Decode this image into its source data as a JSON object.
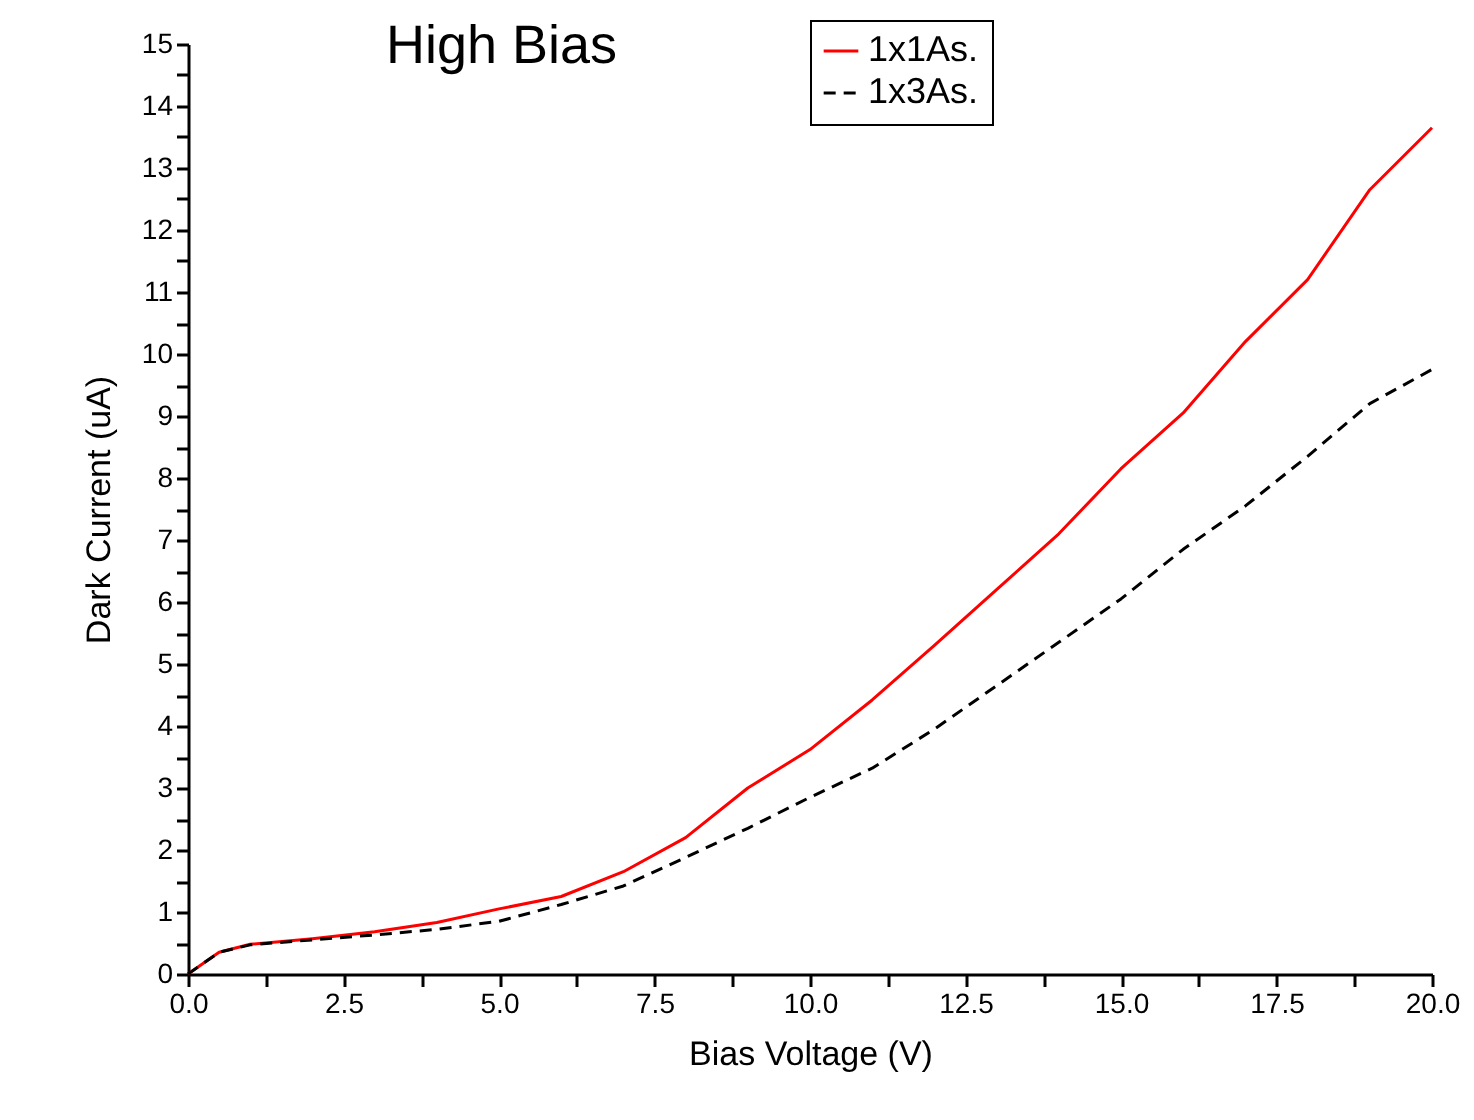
{
  "chart_data": {
    "type": "line",
    "title": "High Bias",
    "xlabel": "Bias Voltage (V)",
    "ylabel": "Dark Current (uA)",
    "x": [
      0,
      0.5,
      1,
      2,
      3,
      4,
      5,
      6,
      7,
      8,
      9,
      10,
      11,
      12,
      13,
      14,
      15,
      16,
      17,
      18,
      19,
      20
    ],
    "series": [
      {
        "name": "1x1As.",
        "color": "#ff0000",
        "line_style": "solid",
        "values": [
          0,
          0.35,
          0.48,
          0.57,
          0.68,
          0.83,
          1.05,
          1.25,
          1.65,
          2.2,
          3.0,
          3.62,
          4.42,
          5.3,
          6.2,
          7.1,
          8.15,
          9.05,
          10.2,
          11.2,
          12.65,
          13.65
        ]
      },
      {
        "name": "1x3As.",
        "color": "#000000",
        "line_style": "dashed",
        "values": [
          0,
          0.35,
          0.47,
          0.55,
          0.63,
          0.72,
          0.85,
          1.12,
          1.42,
          1.88,
          2.35,
          2.85,
          3.32,
          3.95,
          4.65,
          5.35,
          6.05,
          6.85,
          7.55,
          8.35,
          9.2,
          9.75
        ]
      }
    ],
    "xlim": [
      0,
      20
    ],
    "ylim": [
      0,
      15
    ],
    "xticks": [
      {
        "value": 0,
        "label": "0.0"
      },
      {
        "value": 1.25,
        "label": null
      },
      {
        "value": 2.5,
        "label": "2.5"
      },
      {
        "value": 3.75,
        "label": null
      },
      {
        "value": 5,
        "label": "5.0"
      },
      {
        "value": 6.25,
        "label": null
      },
      {
        "value": 7.5,
        "label": "7.5"
      },
      {
        "value": 8.75,
        "label": null
      },
      {
        "value": 10,
        "label": "10.0"
      },
      {
        "value": 11.25,
        "label": null
      },
      {
        "value": 12.5,
        "label": "12.5"
      },
      {
        "value": 13.75,
        "label": null
      },
      {
        "value": 15,
        "label": "15.0"
      },
      {
        "value": 16.25,
        "label": null
      },
      {
        "value": 17.5,
        "label": "17.5"
      },
      {
        "value": 18.75,
        "label": null
      },
      {
        "value": 20,
        "label": "20.0"
      }
    ],
    "yticks": [
      0,
      {
        "value": 0.5,
        "label": null
      },
      1,
      {
        "value": 1.5,
        "label": null
      },
      2,
      {
        "value": 2.5,
        "label": null
      },
      3,
      {
        "value": 3.5,
        "label": null
      },
      4,
      {
        "value": 4.5,
        "label": null
      },
      5,
      {
        "value": 5.5,
        "label": null
      },
      6,
      {
        "value": 6.5,
        "label": null
      },
      7,
      {
        "value": 7.5,
        "label": null
      },
      8,
      {
        "value": 8.5,
        "label": null
      },
      9,
      {
        "value": 9.5,
        "label": null
      },
      10,
      {
        "value": 10.5,
        "label": null
      },
      11,
      {
        "value": 11.5,
        "label": null
      },
      12,
      {
        "value": 12.5,
        "label": null
      },
      13,
      {
        "value": 13.5,
        "label": null
      },
      14,
      {
        "value": 14.5,
        "label": null
      },
      15
    ],
    "legend": "top"
  }
}
